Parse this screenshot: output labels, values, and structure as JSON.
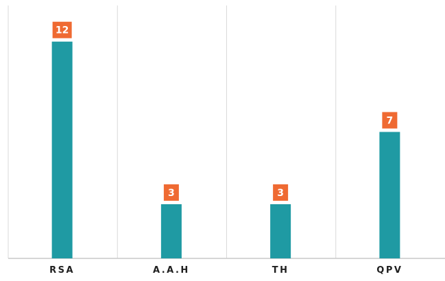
{
  "colors": {
    "bar": "#1f9aa3",
    "label_bg": "#ef6a32",
    "label_text": "#ffffff",
    "grid": "#d9d9d9",
    "axis": "#c8c8c8",
    "tick_text": "#1f1f1f"
  },
  "chart_data": {
    "type": "bar",
    "categories": [
      "RSA",
      "A.A.H",
      "TH",
      "QPV"
    ],
    "values": [
      12,
      3,
      3,
      7
    ],
    "title": "",
    "xlabel": "",
    "ylabel": "",
    "ylim": [
      0,
      14
    ],
    "grid": "vertical separators",
    "data_labels": [
      "12",
      "3",
      "3",
      "7"
    ],
    "legend": "none"
  }
}
